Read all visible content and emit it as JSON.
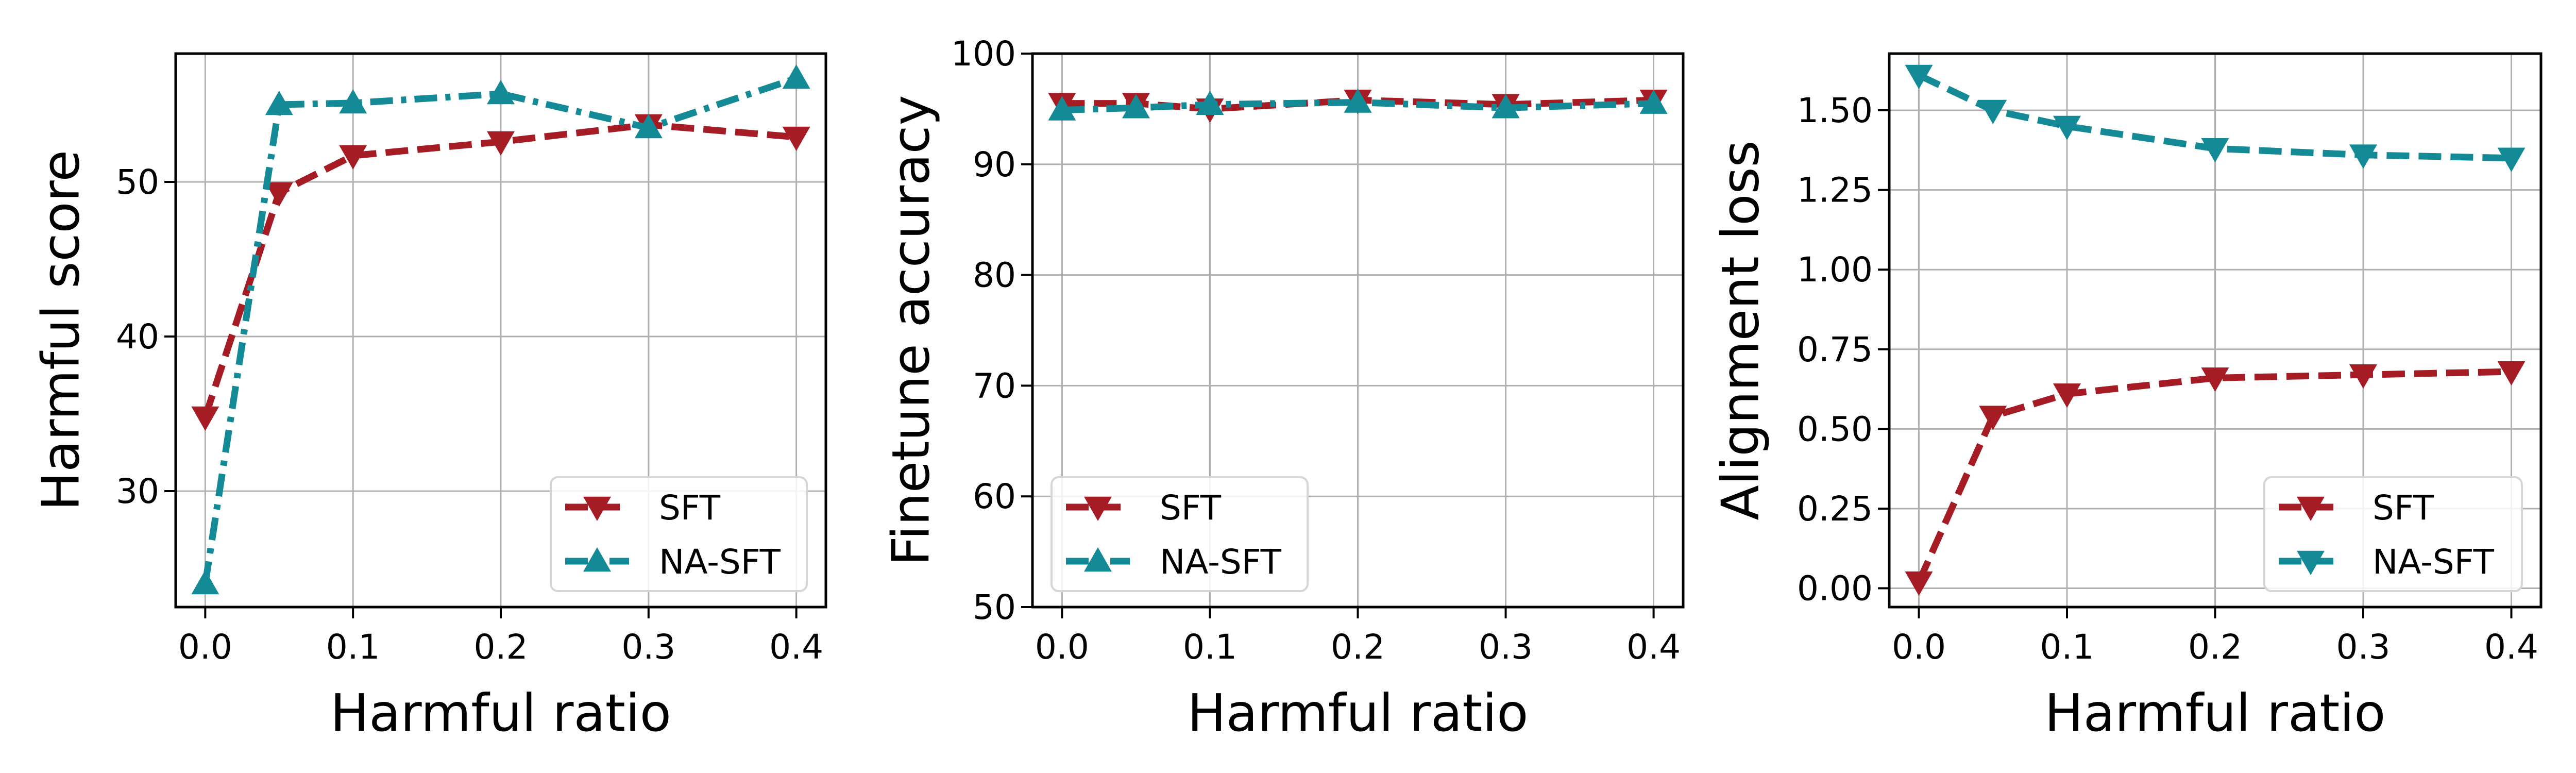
{
  "chart_data": [
    {
      "type": "line",
      "xlabel": "Harmful ratio",
      "ylabel": "Harmful score",
      "x": [
        0.0,
        0.05,
        0.1,
        0.2,
        0.3,
        0.4
      ],
      "xlim": [
        -0.02,
        0.42
      ],
      "ylim": [
        22.5,
        58.3
      ],
      "xticks": [
        "0.0",
        "0.1",
        "0.2",
        "0.3",
        "0.4"
      ],
      "yticks": [
        "30",
        "40",
        "50"
      ],
      "grid": true,
      "legend_position": "lower-right",
      "series": [
        {
          "name": "SFT",
          "values": [
            34.8,
            49.3,
            51.7,
            52.6,
            53.7,
            52.9
          ],
          "color": "#A61C24",
          "marker": "triangle-down",
          "linestyle": "dashed"
        },
        {
          "name": "NA-SFT",
          "values": [
            24.0,
            55.0,
            55.1,
            55.7,
            53.5,
            56.7
          ],
          "color": "#138A96",
          "marker": "triangle-up",
          "linestyle": "dashdot"
        }
      ]
    },
    {
      "type": "line",
      "xlabel": "Harmful ratio",
      "ylabel": "Finetune accuracy",
      "x": [
        0.0,
        0.05,
        0.1,
        0.2,
        0.3,
        0.4
      ],
      "xlim": [
        -0.02,
        0.42
      ],
      "ylim": [
        50,
        100
      ],
      "xticks": [
        "0.0",
        "0.1",
        "0.2",
        "0.3",
        "0.4"
      ],
      "yticks": [
        "50",
        "60",
        "70",
        "80",
        "90",
        "100"
      ],
      "grid": true,
      "legend_position": "lower-left",
      "series": [
        {
          "name": "SFT",
          "values": [
            95.5,
            95.5,
            95.0,
            95.8,
            95.4,
            95.8
          ],
          "color": "#A61C24",
          "marker": "triangle-down",
          "linestyle": "dashed"
        },
        {
          "name": "NA-SFT",
          "values": [
            94.9,
            95.1,
            95.4,
            95.6,
            95.1,
            95.5
          ],
          "color": "#138A96",
          "marker": "triangle-up",
          "linestyle": "dashdot"
        }
      ]
    },
    {
      "type": "line",
      "xlabel": "Harmful ratio",
      "ylabel": "Alignment loss",
      "x": [
        0.0,
        0.05,
        0.1,
        0.2,
        0.3,
        0.4
      ],
      "xlim": [
        -0.02,
        0.42
      ],
      "ylim": [
        -0.059,
        1.678
      ],
      "xticks": [
        "0.0",
        "0.1",
        "0.2",
        "0.3",
        "0.4"
      ],
      "yticks": [
        "0.00",
        "0.25",
        "0.50",
        "0.75",
        "1.00",
        "1.25",
        "1.50"
      ],
      "grid": true,
      "legend_position": "lower-right",
      "series": [
        {
          "name": "SFT",
          "values": [
            0.02,
            0.54,
            0.61,
            0.66,
            0.67,
            0.68
          ],
          "color": "#A61C24",
          "marker": "triangle-down",
          "linestyle": "dashed"
        },
        {
          "name": "NA-SFT",
          "values": [
            1.61,
            1.5,
            1.45,
            1.38,
            1.36,
            1.35
          ],
          "color": "#138A96",
          "marker": "triangle-down",
          "linestyle": "dashed"
        }
      ]
    }
  ]
}
